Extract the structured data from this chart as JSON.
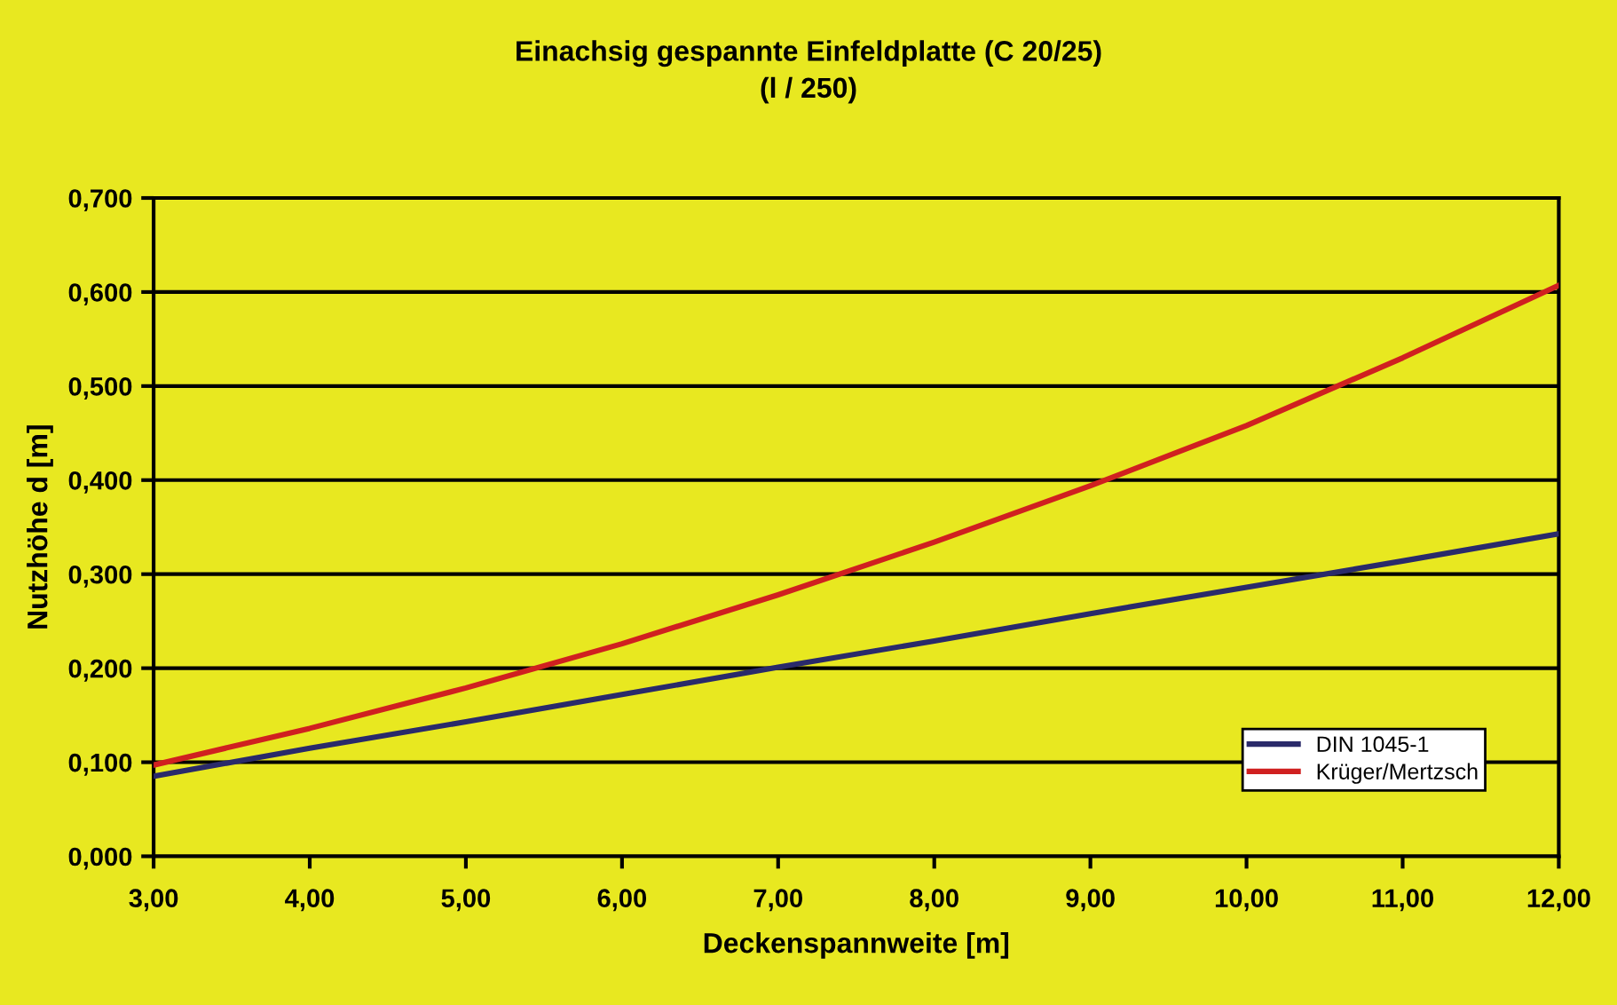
{
  "chart_data": {
    "type": "line",
    "title": "Einachsig gespannte Einfeldplatte (C 20/25)\n(l / 250)",
    "xlabel": "Deckenspannweite [m]",
    "ylabel": "Nutzhöhe d [m]",
    "x": [
      3,
      4,
      5,
      6,
      7,
      8,
      9,
      10,
      11,
      12
    ],
    "series": [
      {
        "name": "DIN 1045-1",
        "color": "#2a2a6a",
        "values": [
          0.085,
          0.115,
          0.143,
          0.172,
          0.201,
          0.229,
          0.258,
          0.286,
          0.314,
          0.343
        ]
      },
      {
        "name": "Krüger/Mertzsch",
        "color": "#d02020",
        "values": [
          0.097,
          0.136,
          0.179,
          0.226,
          0.278,
          0.334,
          0.394,
          0.458,
          0.53,
          0.607
        ]
      }
    ],
    "xlim": [
      3,
      12
    ],
    "xticks": [
      {
        "value": 3,
        "label": "3,00"
      },
      {
        "value": 4,
        "label": "4,00"
      },
      {
        "value": 5,
        "label": "5,00"
      },
      {
        "value": 6,
        "label": "6,00"
      },
      {
        "value": 7,
        "label": "7,00"
      },
      {
        "value": 8,
        "label": "8,00"
      },
      {
        "value": 9,
        "label": "9,00"
      },
      {
        "value": 10,
        "label": "10,00"
      },
      {
        "value": 11,
        "label": "11,00"
      },
      {
        "value": 12,
        "label": "12,00"
      }
    ],
    "ylim": [
      0,
      0.7
    ],
    "yticks": [
      {
        "value": 0,
        "label": "0,000"
      },
      {
        "value": 0.1,
        "label": "0,100"
      },
      {
        "value": 0.2,
        "label": "0,200"
      },
      {
        "value": 0.3,
        "label": "0,300"
      },
      {
        "value": 0.4,
        "label": "0,400"
      },
      {
        "value": 0.5,
        "label": "0,500"
      },
      {
        "value": 0.6,
        "label": "0,600"
      },
      {
        "value": 0.7,
        "label": "0,700"
      }
    ],
    "grid": "y",
    "legend": "bottom right",
    "marker": "none",
    "line_style": "solid"
  }
}
